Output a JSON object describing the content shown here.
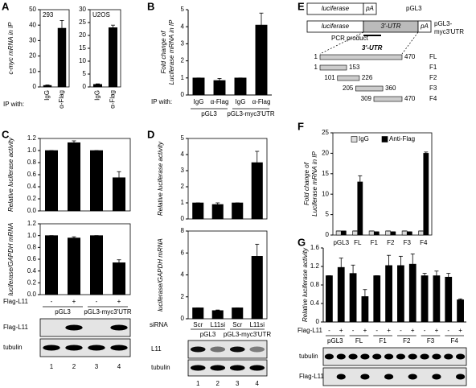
{
  "panels": [
    "A",
    "B",
    "C",
    "D",
    "E",
    "F",
    "G"
  ],
  "chart_data": [
    {
      "type": "bar",
      "title": "293",
      "y_label": [
        "c-myc mRNA in IP"
      ],
      "x_row_label": "IP with:",
      "categories": [
        "IgG",
        "α-Flag"
      ],
      "series": [
        {
          "color": "#000000",
          "values": [
            1,
            38
          ],
          "errors": [
            0.3,
            5
          ]
        }
      ],
      "ylim": [
        0,
        50
      ],
      "yticks": [
        0,
        10,
        20,
        30,
        40,
        50
      ]
    },
    {
      "type": "bar",
      "title": "U2OS",
      "categories": [
        "IgG",
        "α-Flag"
      ],
      "series": [
        {
          "color": "#000000",
          "values": [
            1,
            23
          ],
          "errors": [
            0.2,
            1
          ]
        }
      ],
      "ylim": [
        0,
        30
      ],
      "yticks": [
        0,
        5,
        10,
        15,
        20,
        25,
        30
      ]
    },
    {
      "type": "bar",
      "y_label": [
        "Fold change of",
        "Luciferase mRNA in IP"
      ],
      "x_row_label": "IP with:",
      "categories": [
        "IgG",
        "α-Flag",
        "IgG",
        "α-Flag"
      ],
      "groups": [
        "pGL3",
        "pGL3-myc3'UTR"
      ],
      "series": [
        {
          "color": "#000000",
          "values": [
            1,
            0.85,
            1,
            4.1
          ],
          "errors": [
            0,
            0.12,
            0,
            0.7
          ]
        }
      ],
      "ylim": [
        0,
        5
      ],
      "yticks": [
        0,
        1,
        2,
        3,
        4,
        5
      ]
    },
    {
      "type": "bar",
      "y_label": [
        "Relative luciferase activity"
      ],
      "series": [
        {
          "color": "#000000",
          "values": [
            1,
            1.13,
            1,
            0.55
          ],
          "errors": [
            0,
            0.03,
            0,
            0.1
          ]
        }
      ],
      "ylim": [
        0,
        1.2
      ],
      "yticks": [
        {
          "value": 0,
          "label": "0.0"
        },
        0.2,
        0.4,
        0.6,
        0.8,
        {
          "value": 1,
          "label": "1.0"
        },
        1.2
      ]
    },
    {
      "type": "bar",
      "y_label": [
        "luciferase/GAPDH mRNA"
      ],
      "x_row_label": "Flag-L11",
      "categories": [
        "-",
        "+",
        "-",
        "+"
      ],
      "groups": [
        "pGL3",
        "pGL3-myc3'UTR"
      ],
      "series": [
        {
          "color": "#000000",
          "values": [
            1,
            0.96,
            1,
            0.54
          ],
          "errors": [
            0,
            0.02,
            0,
            0.05
          ]
        }
      ],
      "ylim": [
        0,
        1.2
      ],
      "yticks": [
        {
          "value": 0,
          "label": "0.0"
        },
        0.2,
        0.4,
        0.6,
        0.8,
        {
          "value": 1,
          "label": "1.0"
        },
        1.2
      ]
    },
    {
      "type": "bar",
      "y_label": [
        "Relative luciferase activity"
      ],
      "series": [
        {
          "color": "#000000",
          "values": [
            1,
            0.9,
            1,
            3.5
          ],
          "errors": [
            0,
            0.1,
            0,
            0.7
          ]
        }
      ],
      "ylim": [
        0,
        5
      ],
      "yticks": [
        0,
        1,
        2,
        3,
        4,
        5
      ]
    },
    {
      "type": "bar",
      "y_label": [
        "luciferase/GAPDH mRNA"
      ],
      "x_row_label": "siRNA",
      "categories": [
        "Scr",
        "L11si",
        "Scr",
        "L11si"
      ],
      "groups": [
        "pGL3",
        "pGL3-myc3'UTR"
      ],
      "series": [
        {
          "color": "#000000",
          "values": [
            1,
            0.75,
            1,
            5.7
          ],
          "errors": [
            0,
            0.05,
            0,
            1.1
          ]
        }
      ],
      "ylim": [
        0,
        8
      ],
      "yticks": [
        0,
        2,
        4,
        6,
        8
      ]
    },
    {
      "type": "bar",
      "y_label": [
        "Fold change of",
        "Luciferase mRNA in IP"
      ],
      "legend": "top-right",
      "categories": [
        "pGL3",
        "FL",
        "F1",
        "F2",
        "F3",
        "F4"
      ],
      "series": [
        {
          "name": "IgG",
          "color": "#dddddd",
          "values": [
            1,
            1,
            1,
            1,
            1,
            1
          ],
          "errors": [
            0,
            0,
            0,
            0,
            0,
            0
          ]
        },
        {
          "name": "Anti-Flag",
          "color": "#000000",
          "values": [
            1,
            13,
            0.8,
            0.8,
            0.8,
            20
          ],
          "errors": [
            0,
            1.5,
            0,
            0,
            0,
            0.3
          ]
        }
      ],
      "ylim": [
        0,
        25
      ],
      "yticks": [
        0,
        5,
        10,
        15,
        20,
        25
      ]
    },
    {
      "type": "bar",
      "y_label": [
        "Relative luciferase activity"
      ],
      "x_row_label": "Flag-L11",
      "categories": [
        "-",
        "+",
        "-",
        "+",
        "-",
        "+",
        "-",
        "+",
        "-",
        "+",
        "-",
        "+"
      ],
      "groups": [
        "pGL3",
        "FL",
        "F1",
        "F2",
        "F3",
        "F4"
      ],
      "series": [
        {
          "color": "#000000",
          "values": [
            1,
            1.18,
            1.05,
            0.55,
            1,
            1.22,
            1.22,
            1.25,
            1,
            1,
            0.97,
            0.48
          ],
          "errors": [
            0,
            0.2,
            0.18,
            0.15,
            0,
            0.22,
            0.2,
            0.22,
            0.05,
            0.1,
            0.08,
            0.02
          ]
        }
      ],
      "ylim": [
        0,
        1.6
      ],
      "yticks": [
        0,
        0.4,
        0.8,
        1.2,
        1.6
      ]
    }
  ],
  "diagram": {
    "constructs": [
      {
        "parts": [
          "luciferase",
          "pA"
        ],
        "name": [
          "pGL3"
        ]
      },
      {
        "parts": [
          "luciferase",
          "3'-UTR",
          "pA"
        ],
        "name": [
          "pGL3-",
          "myc3'UTR"
        ]
      }
    ],
    "pcr_label": "PCR product",
    "utr_label": "3'-UTR",
    "fragments": [
      {
        "name": "FL",
        "start": 1,
        "end": 470
      },
      {
        "name": "F1",
        "start": 1,
        "end": 153
      },
      {
        "name": "F2",
        "start": 101,
        "end": 226
      },
      {
        "name": "F3",
        "start": 205,
        "end": 360
      },
      {
        "name": "F4",
        "start": 309,
        "end": 470
      }
    ]
  },
  "blots": {
    "C": {
      "rows": [
        "Flag-L11",
        "tubulin"
      ],
      "lanes": [
        1,
        2,
        3,
        4
      ]
    },
    "D": {
      "rows": [
        "L11",
        "tubulin"
      ],
      "lanes": [
        1,
        2,
        3,
        4
      ]
    },
    "G": {
      "rows": [
        "tubulin",
        "Flag-L11"
      ]
    }
  }
}
